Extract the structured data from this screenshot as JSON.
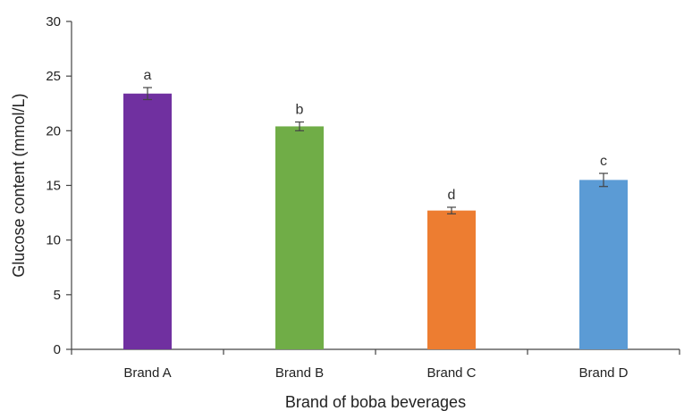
{
  "chart_data": {
    "type": "bar",
    "xlabel": "Brand of boba beverages",
    "ylabel": "Glucose content (mmol/L)",
    "ylim": [
      0,
      30
    ],
    "yticks": [
      0,
      5,
      10,
      15,
      20,
      25,
      30
    ],
    "categories": [
      "Brand A",
      "Brand B",
      "Brand C",
      "Brand D"
    ],
    "values": [
      23.4,
      20.4,
      12.7,
      15.5
    ],
    "errors": [
      0.55,
      0.4,
      0.3,
      0.6
    ],
    "significance_labels": [
      "a",
      "b",
      "d",
      "c"
    ],
    "colors": [
      "#7030a0",
      "#70ad47",
      "#ed7d31",
      "#5b9bd5"
    ],
    "grid": false,
    "legend": "none"
  }
}
